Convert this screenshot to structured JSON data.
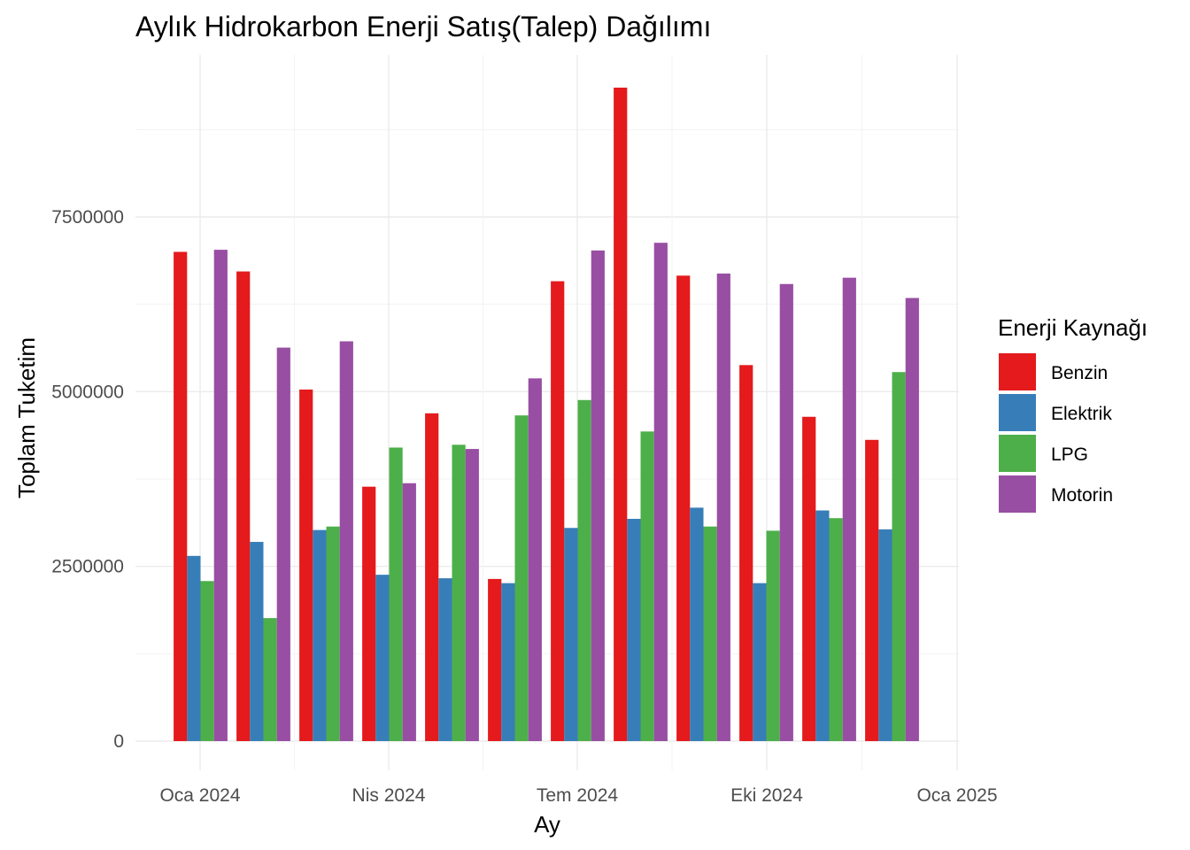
{
  "chart_data": {
    "type": "bar",
    "title": "Aylık Hidrokarbon Enerji Satış(Talep) Dağılımı",
    "xlabel": "Ay",
    "ylabel": "Toplam Tuketim",
    "x_ticks": [
      "Oca 2024",
      "Nis 2024",
      "Tem 2024",
      "Eki 2024",
      "Oca 2025"
    ],
    "y_ticks": [
      "0",
      "2500000",
      "5000000",
      "7500000"
    ],
    "ylim": [
      0,
      9800000
    ],
    "grid": true,
    "legend": {
      "title": "Enerji Kaynağı",
      "position": "right"
    },
    "categories": [
      "2024-01",
      "2024-02",
      "2024-03",
      "2024-04",
      "2024-05",
      "2024-06",
      "2024-07",
      "2024-08",
      "2024-09",
      "2024-10",
      "2024-11",
      "2024-12"
    ],
    "series": [
      {
        "name": "Benzin",
        "color": "#e41a1c",
        "values": [
          7000000,
          6720000,
          5030000,
          3640000,
          4690000,
          2320000,
          6580000,
          9350000,
          6660000,
          5380000,
          4640000,
          4310000
        ]
      },
      {
        "name": "Elektrik",
        "color": "#377eb8",
        "values": [
          2650000,
          2850000,
          3020000,
          2380000,
          2330000,
          2260000,
          3050000,
          3180000,
          3340000,
          2260000,
          3300000,
          3030000
        ]
      },
      {
        "name": "LPG",
        "color": "#4daf4a",
        "values": [
          2290000,
          1760000,
          3070000,
          4200000,
          4240000,
          4660000,
          4880000,
          4430000,
          3070000,
          3010000,
          3190000,
          5280000
        ]
      },
      {
        "name": "Motorin",
        "color": "#984ea3",
        "values": [
          7030000,
          5630000,
          5720000,
          3690000,
          4180000,
          5190000,
          7020000,
          7130000,
          6690000,
          6540000,
          6630000,
          6340000
        ]
      }
    ]
  }
}
